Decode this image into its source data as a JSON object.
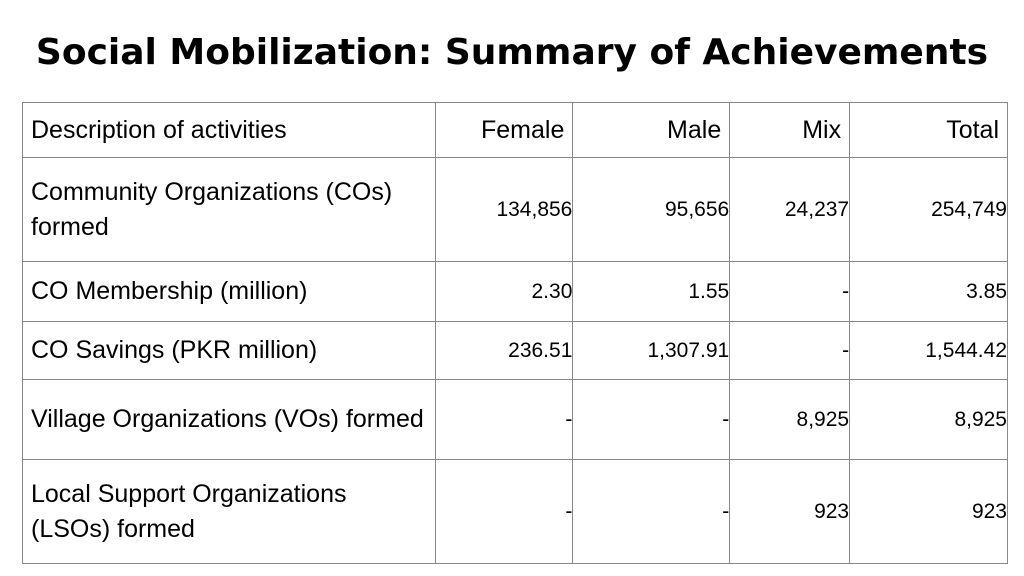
{
  "header": {
    "title": "Social Mobilization: Summary of Achievements"
  },
  "table": {
    "columns": [
      "Description of activities",
      "Female",
      "Male",
      "Mix",
      "Total"
    ],
    "rows": [
      [
        "Community Organizations (COs) formed",
        "134,856",
        "95,656",
        "24,237",
        "254,749"
      ],
      [
        "CO Membership (million)",
        "2.30",
        "1.55",
        "-",
        "3.85"
      ],
      [
        "CO Savings (PKR million)",
        "236.51",
        "1,307.91",
        "-",
        "1,544.42"
      ],
      [
        "Village Organizations (VOs) formed",
        "-",
        "-",
        "8,925",
        "8,925"
      ],
      [
        "Local Support Organizations (LSOs) formed",
        "-",
        "-",
        "923",
        "923"
      ]
    ]
  }
}
